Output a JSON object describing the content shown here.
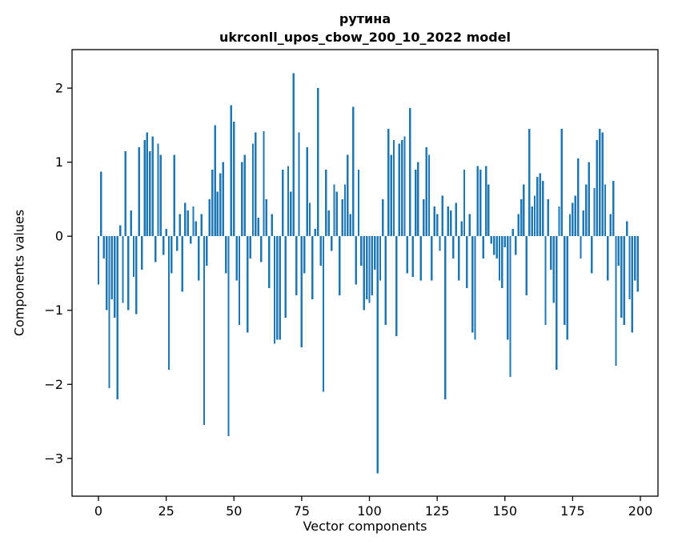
{
  "figure": {
    "background": "#ffffff"
  },
  "chart_data": {
    "type": "bar",
    "title": "рутина",
    "subtitle": "ukrconll_upos_cbow_200_10_2022 model",
    "xlabel": "Vector components",
    "ylabel": "Components values",
    "bar_color": "#1f77b4",
    "bar_width": 2.4,
    "n_components": 200,
    "xlim": [
      -9.75,
      206.5
    ],
    "ylim": [
      -3.51,
      2.52
    ],
    "x_ticks": [
      0,
      25,
      50,
      75,
      100,
      125,
      150,
      175,
      200
    ],
    "y_ticks": [
      2,
      1,
      0,
      -1,
      -2,
      -3
    ],
    "grid": false,
    "legend": "none",
    "values": [
      -0.65,
      0.87,
      -0.3,
      -1.0,
      -2.05,
      -0.85,
      -1.1,
      -2.2,
      0.15,
      -0.9,
      1.15,
      -1.0,
      0.35,
      -0.55,
      -1.05,
      1.2,
      -0.45,
      1.3,
      1.4,
      1.15,
      1.35,
      -0.35,
      1.25,
      1.1,
      -0.25,
      0.1,
      -1.8,
      -0.5,
      1.1,
      -0.2,
      0.3,
      -0.75,
      0.45,
      0.35,
      -0.1,
      0.4,
      0.2,
      -0.6,
      0.3,
      -2.55,
      -0.4,
      0.5,
      0.9,
      1.5,
      0.6,
      0.85,
      1.0,
      -0.5,
      -2.7,
      1.77,
      1.55,
      -0.6,
      -1.2,
      1.0,
      1.1,
      -1.3,
      -0.3,
      1.25,
      1.4,
      0.25,
      -0.35,
      1.42,
      0.5,
      -0.7,
      0.3,
      -1.45,
      -1.4,
      -1.4,
      0.9,
      -1.1,
      0.95,
      0.6,
      2.2,
      -0.8,
      1.4,
      -1.5,
      -0.5,
      1.2,
      0.45,
      -0.85,
      0.1,
      2.0,
      -0.4,
      -2.1,
      0.9,
      0.35,
      -0.2,
      0.7,
      0.6,
      -0.8,
      0.5,
      0.7,
      1.1,
      0.3,
      1.75,
      -0.65,
      0.9,
      -0.4,
      -1.0,
      -0.85,
      -0.9,
      -0.8,
      -0.45,
      -3.2,
      -0.6,
      0.5,
      -1.2,
      1.45,
      1.1,
      1.3,
      -1.35,
      1.25,
      1.3,
      1.35,
      -0.5,
      1.73,
      -0.55,
      0.9,
      1.0,
      -0.6,
      0.5,
      1.2,
      1.1,
      -0.6,
      0.4,
      0.3,
      -0.2,
      0.55,
      -2.2,
      0.4,
      0.35,
      -0.3,
      0.45,
      -0.6,
      0.2,
      0.9,
      -0.7,
      0.3,
      -1.3,
      -1.4,
      0.95,
      0.9,
      -0.3,
      0.95,
      0.7,
      -0.1,
      -0.25,
      -0.3,
      -0.6,
      -0.7,
      -0.15,
      -1.4,
      -1.9,
      0.1,
      -0.25,
      0.3,
      0.5,
      0.7,
      -0.8,
      1.45,
      0.4,
      0.55,
      0.8,
      0.85,
      0.75,
      -1.2,
      0.5,
      -0.45,
      -0.9,
      -1.8,
      0.4,
      1.45,
      -1.2,
      -1.4,
      0.3,
      0.45,
      0.55,
      1.05,
      -0.3,
      0.35,
      0.7,
      1.0,
      -0.5,
      0.65,
      1.3,
      1.45,
      1.4,
      0.7,
      -0.6,
      0.3,
      0.75,
      -1.75,
      -0.4,
      -1.1,
      -1.2,
      0.2,
      -0.85,
      -1.3,
      -0.6,
      -0.75
    ]
  }
}
